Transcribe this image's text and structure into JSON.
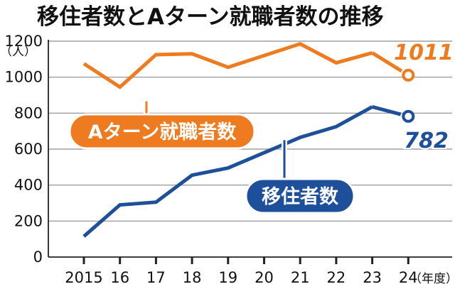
{
  "chart_data": {
    "type": "line",
    "title": "移住者数とAターン就職者数の推移",
    "ylabel": "（人）",
    "xlabel": "（年度）",
    "categories": [
      "2015",
      "16",
      "17",
      "18",
      "19",
      "20",
      "21",
      "22",
      "23",
      "24"
    ],
    "ylim": [
      0,
      1200
    ],
    "yticks": [
      "0",
      "200",
      "400",
      "600",
      "800",
      "1000",
      "1200"
    ],
    "grid": true,
    "series": [
      {
        "name": "Aターン就職者数",
        "color": "#ee7b1f",
        "values": [
          1075,
          945,
          1125,
          1130,
          1055,
          1120,
          1185,
          1080,
          1135,
          1011
        ],
        "end_label": "1011"
      },
      {
        "name": "移住者数",
        "color": "#1e4f9a",
        "values": [
          115,
          290,
          305,
          455,
          495,
          580,
          665,
          725,
          835,
          782
        ],
        "end_label": "782"
      }
    ]
  }
}
